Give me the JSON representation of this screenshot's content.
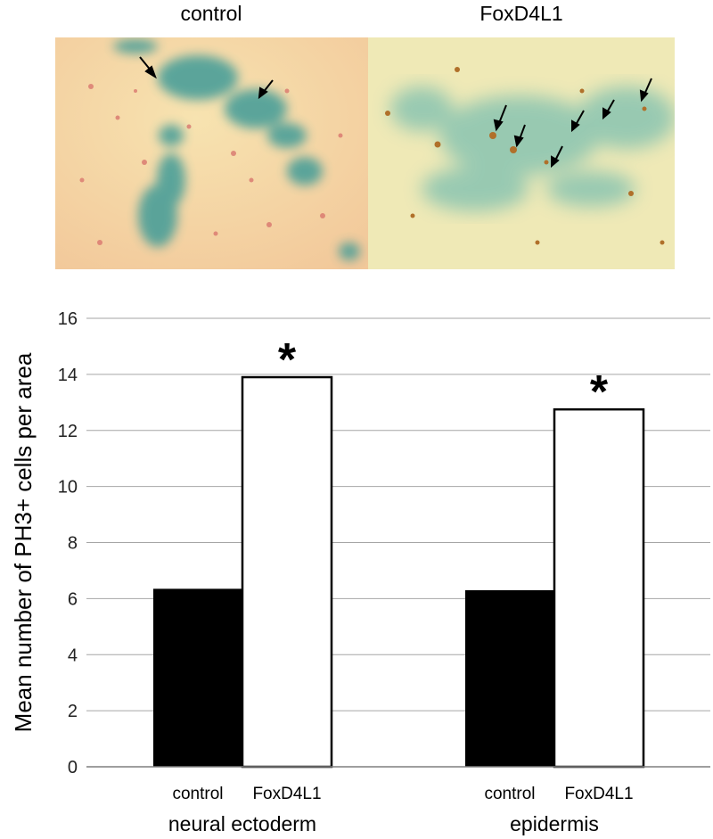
{
  "panels": [
    {
      "label": "control"
    },
    {
      "label": "FoxD4L1"
    }
  ],
  "colors": {
    "control_bar": "#000000",
    "foxd4l1_bar": "#ffffff",
    "grid": "#a6a6a6",
    "left_photo_bg": "#f5dca6",
    "right_photo_bg": "#f0eab8",
    "stain_blue": "#3f9b98",
    "stain_red": "#d9776e",
    "stain_brown": "#b0702a"
  },
  "chart_data": {
    "type": "bar",
    "ylabel": "Mean number of PH3+ cells per area",
    "ylim": [
      0,
      16
    ],
    "yticks": [
      0,
      2,
      4,
      6,
      8,
      10,
      12,
      14,
      16
    ],
    "grid": true,
    "groups": [
      {
        "label": "neural ectoderm",
        "categories": [
          "control",
          "FoxD4L1"
        ],
        "values": [
          6.35,
          13.9
        ],
        "significance": [
          "",
          "*"
        ]
      },
      {
        "label": "epidermis",
        "categories": [
          "control",
          "FoxD4L1"
        ],
        "values": [
          6.3,
          12.75
        ],
        "significance": [
          "",
          "*"
        ]
      }
    ]
  }
}
